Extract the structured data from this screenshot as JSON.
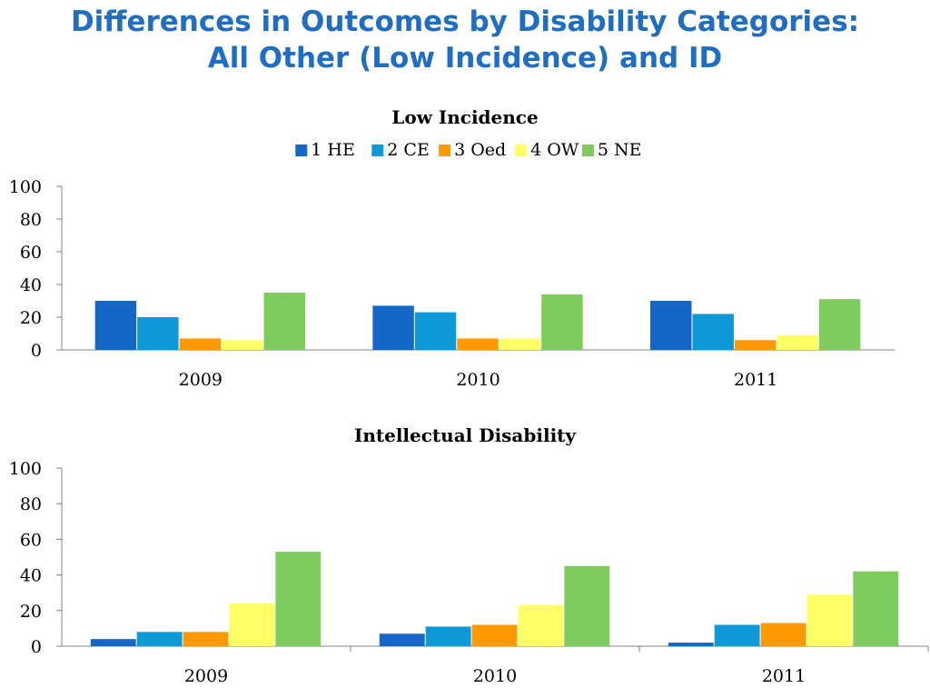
{
  "slide": {
    "title_line1": "Differences in Outcomes by Disability Categories:",
    "title_line2": "All Other (Low Incidence) and ID"
  },
  "chart_data": [
    {
      "type": "bar",
      "title": "Low Incidence",
      "categories": [
        "2009",
        "2010",
        "2011"
      ],
      "ylim": [
        0,
        100
      ],
      "yticks": [
        0,
        20,
        40,
        60,
        80,
        100
      ],
      "legend": "top",
      "series": [
        {
          "name": "1  HE",
          "color": "#1467C6",
          "values": [
            30,
            27,
            30
          ]
        },
        {
          "name": "2 CE",
          "color": "#0D98D8",
          "values": [
            20,
            23,
            22
          ]
        },
        {
          "name": "3 Oed",
          "color": "#FF9900",
          "values": [
            7,
            7,
            6
          ]
        },
        {
          "name": "4 OW",
          "color": "#FFFF66",
          "values": [
            6,
            7,
            9
          ]
        },
        {
          "name": "5 NE",
          "color": "#7FCC5E",
          "values": [
            35,
            34,
            31
          ]
        }
      ]
    },
    {
      "type": "bar",
      "title": "Intellectual Disability",
      "categories": [
        "2009",
        "2010",
        "2011"
      ],
      "ylim": [
        0,
        100
      ],
      "yticks": [
        0,
        20,
        40,
        60,
        80,
        100
      ],
      "series": [
        {
          "color": "#1467C6",
          "values": [
            4,
            7,
            2
          ]
        },
        {
          "color": "#0D98D8",
          "values": [
            8,
            11,
            12
          ]
        },
        {
          "color": "#FF9900",
          "values": [
            8,
            12,
            13
          ]
        },
        {
          "color": "#FFFF66",
          "values": [
            24,
            23,
            29
          ]
        },
        {
          "color": "#7FCC5E",
          "values": [
            53,
            45,
            42
          ]
        }
      ]
    }
  ]
}
